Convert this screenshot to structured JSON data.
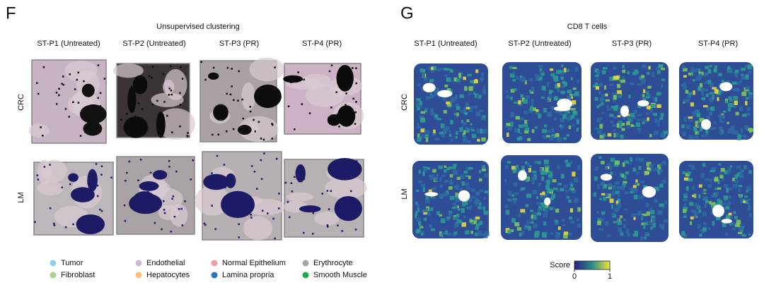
{
  "panels": [
    {
      "letter": "F",
      "title": "Unsupervised clustering",
      "columns": [
        "ST-P1 (Untreated)",
        "ST-P2 (Untreated)",
        "ST-P3 (PR)",
        "ST-P4 (PR)"
      ],
      "rows": [
        "CRC",
        "LM"
      ],
      "legend": [
        {
          "label": "Tumor",
          "color": "#8fd0e6"
        },
        {
          "label": "Fibroblast",
          "color": "#a9d18e"
        },
        {
          "label": "Endothelial",
          "color": "#d2b6da"
        },
        {
          "label": "Hepatocytes",
          "color": "#f6c27c"
        },
        {
          "label": "Normal Epithelium",
          "color": "#ef9c9c"
        },
        {
          "label": "Lamina propria",
          "color": "#2b78b5"
        },
        {
          "label": "Erythrocyte",
          "color": "#a6a6a6"
        },
        {
          "label": "Smooth Muscle",
          "color": "#23a84a"
        }
      ]
    },
    {
      "letter": "G",
      "title": "CD8 T cells",
      "columns": [
        "ST-P1 (Untreated)",
        "ST-P2 (Untreated)",
        "ST-P3 (PR)",
        "ST-P4 (PR)"
      ],
      "rows": [
        "CRC",
        "LM"
      ],
      "colorbar": {
        "label": "Score",
        "lim": [
          0,
          1
        ],
        "ticks": [
          0,
          1
        ],
        "colors": [
          "#2a1f7c",
          "#2a8c8c",
          "#f3e23a"
        ]
      }
    }
  ]
}
